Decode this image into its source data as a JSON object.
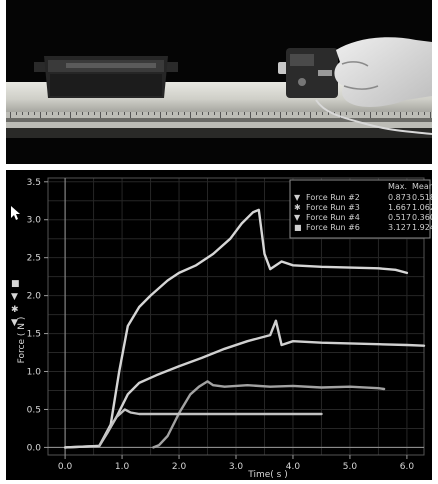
{
  "photo": {
    "description_icon": "force-sensor-on-track-photo"
  },
  "chart_data": {
    "type": "line",
    "xlabel": "Time( s )",
    "ylabel": "Force ( N )",
    "xlim": [
      -0.3,
      6.3
    ],
    "ylim": [
      -0.1,
      3.55
    ],
    "xticks": [
      "0.0",
      "1.0",
      "2.0",
      "3.0",
      "4.0",
      "5.0",
      "6.0"
    ],
    "yticks": [
      "0.0",
      "0.5",
      "1.0",
      "1.5",
      "2.0",
      "2.5",
      "3.0",
      "3.5"
    ],
    "grid": true,
    "legend": {
      "position": "top-right",
      "headers": [
        "Max.",
        "Mean"
      ],
      "entries": [
        {
          "marker": "▼",
          "name": "Force Run #2",
          "max": "0.873",
          "mean": "0.518"
        },
        {
          "marker": "✱",
          "name": "Force Run #3",
          "max": "1.667",
          "mean": "1.062"
        },
        {
          "marker": "▼",
          "name": "Force Run #4",
          "max": "0.517",
          "mean": "0.360"
        },
        {
          "marker": "■",
          "name": "Force Run #6",
          "max": "3.127",
          "mean": "1.924"
        }
      ]
    },
    "series": [
      {
        "name": "Force Run #6",
        "color": "#d6d6d6",
        "x": [
          0.0,
          0.6,
          0.8,
          0.95,
          1.1,
          1.3,
          1.5,
          1.8,
          2.0,
          2.3,
          2.6,
          2.9,
          3.1,
          3.3,
          3.4,
          3.5,
          3.6,
          3.8,
          4.0,
          4.5,
          5.0,
          5.5,
          5.8,
          6.0
        ],
        "y": [
          0.0,
          0.02,
          0.3,
          1.0,
          1.6,
          1.85,
          2.0,
          2.2,
          2.3,
          2.4,
          2.55,
          2.75,
          2.95,
          3.1,
          3.13,
          2.55,
          2.35,
          2.45,
          2.4,
          2.38,
          2.37,
          2.36,
          2.34,
          2.3
        ]
      },
      {
        "name": "Force Run #3",
        "color": "#d0d0d0",
        "x": [
          0.0,
          0.6,
          0.9,
          1.1,
          1.3,
          1.6,
          2.0,
          2.4,
          2.8,
          3.2,
          3.6,
          3.7,
          3.8,
          4.0,
          4.5,
          5.0,
          5.5,
          6.0,
          6.3
        ],
        "y": [
          0.0,
          0.02,
          0.4,
          0.7,
          0.85,
          0.95,
          1.07,
          1.18,
          1.3,
          1.4,
          1.48,
          1.67,
          1.35,
          1.4,
          1.38,
          1.37,
          1.36,
          1.35,
          1.34
        ]
      },
      {
        "name": "Force Run #2",
        "color": "#a2a2a2",
        "x": [
          1.55,
          1.65,
          1.8,
          2.0,
          2.2,
          2.35,
          2.5,
          2.6,
          2.8,
          3.2,
          3.6,
          4.0,
          4.5,
          5.0,
          5.5,
          5.6
        ],
        "y": [
          0.0,
          0.03,
          0.15,
          0.45,
          0.7,
          0.8,
          0.87,
          0.82,
          0.8,
          0.82,
          0.8,
          0.81,
          0.79,
          0.8,
          0.78,
          0.77
        ]
      },
      {
        "name": "Force Run #4",
        "color": "#c2c2c2",
        "x": [
          0.6,
          0.75,
          0.9,
          1.05,
          1.15,
          1.3,
          1.5,
          2.0,
          2.5,
          3.0,
          3.5,
          4.0,
          4.5
        ],
        "y": [
          0.02,
          0.2,
          0.4,
          0.5,
          0.46,
          0.44,
          0.44,
          0.44,
          0.44,
          0.44,
          0.44,
          0.44,
          0.44
        ]
      }
    ]
  }
}
